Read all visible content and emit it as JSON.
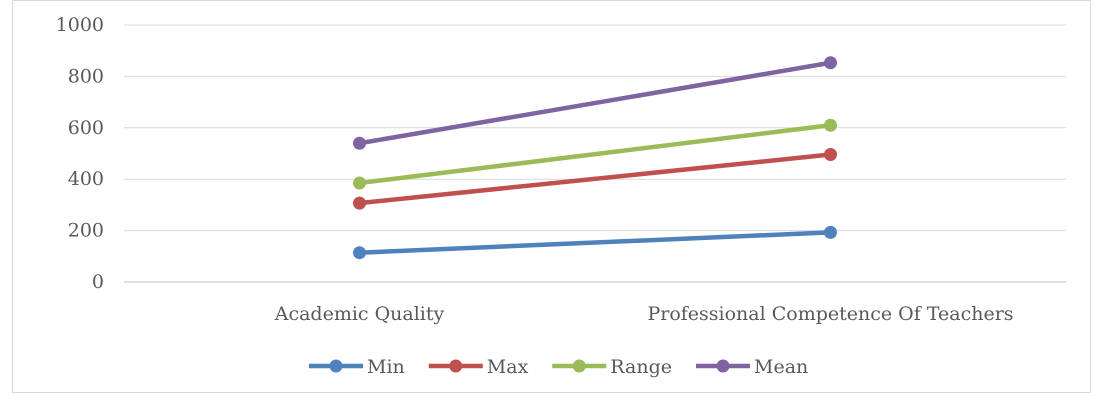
{
  "chart_data": {
    "type": "line",
    "categories": [
      "Academic Quality",
      "Professional Competence Of Teachers"
    ],
    "series": [
      {
        "name": "Min",
        "values": [
          114,
          193
        ],
        "color": "#4f81bd"
      },
      {
        "name": "Max",
        "values": [
          307,
          496
        ],
        "color": "#c0504d"
      },
      {
        "name": "Range",
        "values": [
          385,
          610
        ],
        "color": "#9bbb59"
      },
      {
        "name": "Mean",
        "values": [
          540,
          853
        ],
        "color": "#8064a2"
      }
    ],
    "ylim": [
      0,
      1000
    ],
    "yticks": [
      0,
      200,
      400,
      600,
      800,
      1000
    ],
    "grid": true,
    "legend": "bottom"
  }
}
